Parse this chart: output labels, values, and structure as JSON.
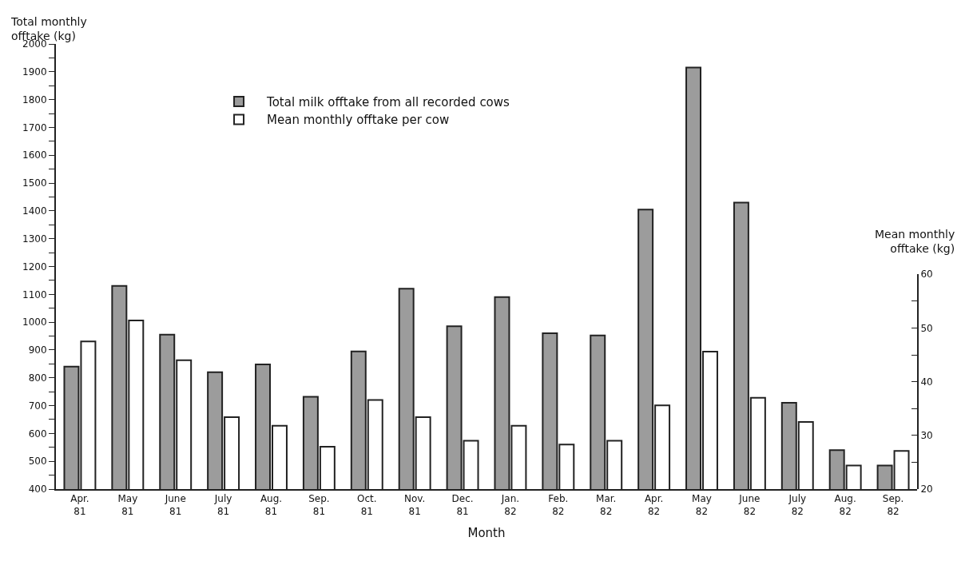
{
  "chart_data": {
    "type": "bar",
    "xlabel": "Month",
    "ylabel": "Total monthly\nofftake (kg)",
    "y2label": "Mean monthly\nofftake (kg)",
    "categories": [
      "Apr.\n81",
      "May\n81",
      "June\n81",
      "July\n81",
      "Aug.\n81",
      "Sep.\n81",
      "Oct.\n81",
      "Nov.\n81",
      "Dec.\n81",
      "Jan.\n82",
      "Feb.\n82",
      "Mar.\n82",
      "Apr.\n82",
      "May\n82",
      "June\n82",
      "July\n82",
      "Aug.\n82",
      "Sep.\n82"
    ],
    "series": [
      {
        "name": "Total milk offtake from all recorded cows",
        "color": "#9c9c9c",
        "values": [
          840,
          1130,
          955,
          820,
          848,
          732,
          895,
          1120,
          985,
          1090,
          960,
          952,
          1405,
          1915,
          1430,
          710,
          540,
          485
        ]
      },
      {
        "name": "Mean monthly offtake per cow",
        "color": "#ffffff",
        "axis": "y2",
        "values": [
          47.5,
          51.4,
          44,
          33.4,
          31.8,
          27.9,
          36.6,
          33.4,
          29,
          31.8,
          28.3,
          29,
          35.6,
          45.6,
          37,
          32.5,
          24.4,
          27.1
        ]
      }
    ],
    "ylim": [
      400,
      2000
    ],
    "yticks": [
      400,
      {
        "value": 450,
        "label": null
      },
      500,
      {
        "value": 550,
        "label": null
      },
      600,
      {
        "value": 650,
        "label": null
      },
      700,
      {
        "value": 750,
        "label": null
      },
      800,
      {
        "value": 850,
        "label": null
      },
      900,
      {
        "value": 950,
        "label": null
      },
      1000,
      {
        "value": 1050,
        "label": null
      },
      1100,
      {
        "value": 1150,
        "label": null
      },
      1200,
      {
        "value": 1250,
        "label": null
      },
      1300,
      {
        "value": 1350,
        "label": null
      },
      1400,
      {
        "value": 1450,
        "label": null
      },
      1500,
      {
        "value": 1550,
        "label": null
      },
      1600,
      {
        "value": 1650,
        "label": null
      },
      1700,
      {
        "value": 1750,
        "label": null
      },
      1800,
      {
        "value": 1850,
        "label": null
      },
      1900,
      {
        "value": 1950,
        "label": null
      },
      2000
    ],
    "y2lim": [
      20,
      60
    ],
    "y2ticks": [
      20,
      {
        "value": 25,
        "label": null
      },
      30,
      {
        "value": 35,
        "label": null
      },
      40,
      {
        "value": 45,
        "label": null
      },
      50,
      {
        "value": 55,
        "label": null
      },
      60
    ],
    "legend": "top left"
  }
}
